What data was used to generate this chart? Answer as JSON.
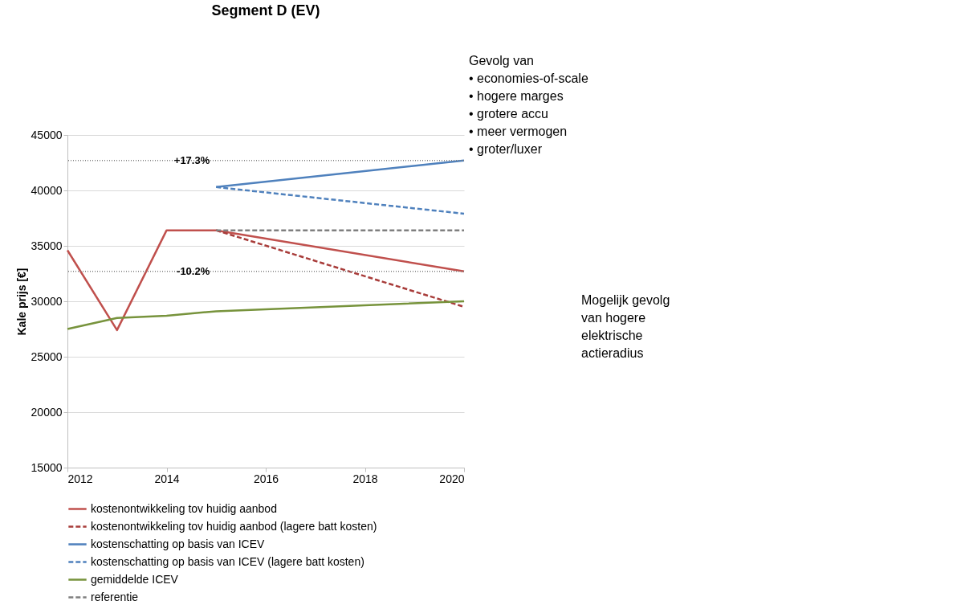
{
  "chart_data": {
    "type": "line",
    "title": "Segment D (EV)",
    "ylabel": "Kale prijs [€]",
    "xlim": [
      2012,
      2020
    ],
    "xticks": [
      2012,
      2014,
      2016,
      2018,
      2020
    ],
    "ylim": [
      15000,
      45000
    ],
    "yticks": [
      15000,
      20000,
      25000,
      30000,
      35000,
      40000,
      45000
    ],
    "grid": "y",
    "legend": "bottom",
    "marker": "none",
    "series": [
      {
        "name": "kostenontwikkeling tov huidig aanbod",
        "color": "#c0504d",
        "line_style": "solid",
        "x": [
          2012,
          2013,
          2014,
          2015,
          2020
        ],
        "values": [
          34600,
          27400,
          36400,
          36400,
          32700
        ]
      },
      {
        "name": "kostenontwikkeling tov huidig aanbod (lagere batt kosten)",
        "color": "#a83c3a",
        "line_style": "dashed",
        "x": [
          2015,
          2020
        ],
        "values": [
          36400,
          29500
        ]
      },
      {
        "name": "kostenschatting op basis van ICEV",
        "color": "#4f81bd",
        "line_style": "solid",
        "x": [
          2015,
          2020
        ],
        "values": [
          40300,
          42700
        ]
      },
      {
        "name": "kostenschatting op basis van ICEV (lagere batt kosten)",
        "color": "#4f81bd",
        "line_style": "dashed",
        "x": [
          2015,
          2020
        ],
        "values": [
          40300,
          37900
        ]
      },
      {
        "name": "gemiddelde ICEV",
        "color": "#77933c",
        "line_style": "solid",
        "x": [
          2012,
          2013,
          2014,
          2015,
          2020
        ],
        "values": [
          27500,
          28500,
          28700,
          29100,
          30000
        ]
      },
      {
        "name": "referentie",
        "color": "#7f7f7f",
        "line_style": "dashed",
        "x": [
          2015,
          2020
        ],
        "values": [
          36400,
          36400
        ]
      }
    ],
    "ref_lines": [
      {
        "axis": "y",
        "value": 42700,
        "label": null,
        "color": "#7f7f7f",
        "line_style": "dotted"
      },
      {
        "axis": "y",
        "value": 32700,
        "label": null,
        "color": "#7f7f7f",
        "line_style": "dotted"
      }
    ],
    "annotations": [
      {
        "text": "+17.3%",
        "x": 2015,
        "y": 42700
      },
      {
        "text": "-10.2%",
        "x": 2015,
        "y": 32700
      },
      "Gevolg van\n•  economies-of-scale\n•  hogere marges\n•  grotere accu\n•  meer vermogen\n•  groter/luxer",
      "Mogelijk gevolg\nvan hogere\nelektrische\nactieradius"
    ]
  }
}
